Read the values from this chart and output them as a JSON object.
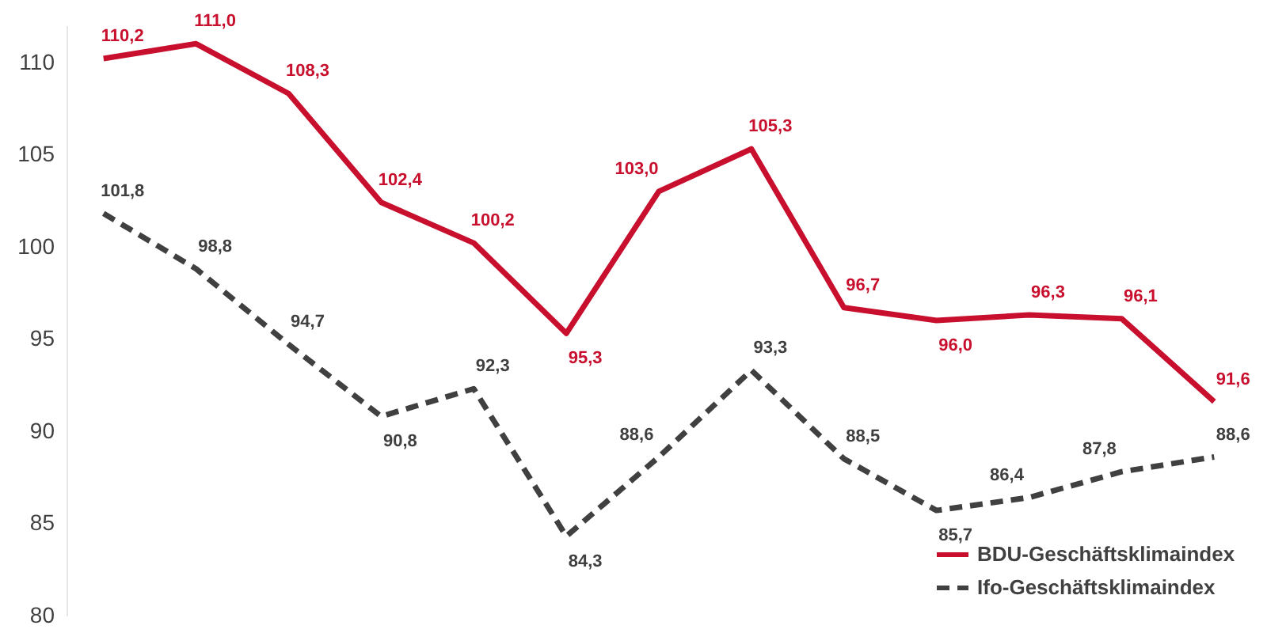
{
  "chart_data": {
    "type": "line",
    "categories": [
      null,
      null,
      null,
      null,
      null,
      null,
      null,
      null,
      null,
      null,
      null,
      null,
      null
    ],
    "series": [
      {
        "name": "BDU-Geschäftsklimaindex",
        "color": "#c8102e",
        "line_style": "solid",
        "values": [
          110.2,
          111.0,
          108.3,
          102.4,
          100.2,
          95.3,
          103.0,
          105.3,
          96.7,
          96.0,
          96.3,
          96.1,
          91.6
        ],
        "value_labels": [
          "110,2",
          "111,0",
          "108,3",
          "102,4",
          "100,2",
          "95,3",
          "103,0",
          "105,3",
          "96,7",
          "96,0",
          "96,3",
          "96,1",
          "91,6"
        ]
      },
      {
        "name": "Ifo-Geschäftsklimaindex",
        "color": "#404040",
        "line_style": "dashed",
        "values": [
          101.8,
          98.8,
          94.7,
          90.8,
          92.3,
          84.3,
          88.6,
          93.3,
          88.5,
          85.7,
          86.4,
          87.8,
          88.6
        ],
        "value_labels": [
          "101,8",
          "98,8",
          "94,7",
          "90,8",
          "92,3",
          "84,3",
          "88,6",
          "93,3",
          "88,5",
          "85,7",
          "86,4",
          "87,8",
          "88,6"
        ]
      }
    ],
    "ylim": [
      80,
      112
    ],
    "yticks": [
      80,
      85,
      90,
      95,
      100,
      105,
      110
    ],
    "grid": false,
    "legend": "bottom right",
    "tick_labels": "y",
    "marker": "none"
  }
}
